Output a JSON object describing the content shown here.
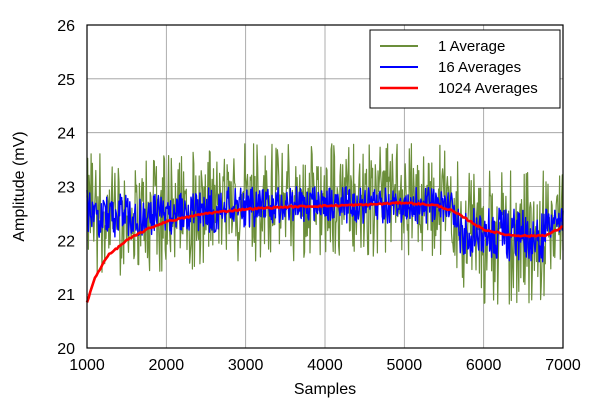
{
  "chart_data": {
    "type": "line",
    "title": "",
    "xlabel": "Samples",
    "ylabel": "Amplitude (mV)",
    "xlim": [
      1000,
      7000
    ],
    "ylim": [
      20,
      26
    ],
    "xticks": [
      1000,
      2000,
      3000,
      4000,
      5000,
      6000,
      7000
    ],
    "yticks": [
      20,
      21,
      22,
      23,
      24,
      25,
      26
    ],
    "grid": true,
    "legend_position": "top-right",
    "series": [
      {
        "name": "1 Average",
        "color": "#6b8e3a",
        "render": "band",
        "x": [
          1000,
          1500,
          2000,
          2500,
          3000,
          3500,
          4000,
          4500,
          5000,
          5500,
          5650,
          5700,
          6000,
          6500,
          6750,
          6800,
          7000
        ],
        "upper": [
          23.7,
          23.5,
          23.6,
          23.7,
          23.8,
          23.8,
          23.8,
          23.8,
          23.8,
          23.8,
          23.7,
          23.3,
          23.3,
          23.3,
          23.3,
          23.2,
          23.3
        ],
        "lower": [
          21.4,
          21.3,
          21.4,
          21.5,
          21.6,
          21.6,
          21.7,
          21.7,
          21.7,
          21.7,
          21.6,
          20.9,
          20.8,
          20.8,
          20.8,
          21.3,
          21.3
        ]
      },
      {
        "name": "16 Averages",
        "color": "#0000ff",
        "render": "band",
        "x": [
          1000,
          1500,
          2000,
          2500,
          3000,
          3500,
          4000,
          4500,
          5000,
          5500,
          5650,
          5700,
          6000,
          6500,
          6750,
          6800,
          7000
        ],
        "upper": [
          23.0,
          22.9,
          22.9,
          23.0,
          23.0,
          23.0,
          23.0,
          23.0,
          23.0,
          23.0,
          22.9,
          22.6,
          22.6,
          22.6,
          22.6,
          22.7,
          22.7
        ],
        "lower": [
          22.0,
          22.0,
          22.1,
          22.1,
          22.2,
          22.3,
          22.3,
          22.3,
          22.3,
          22.3,
          22.2,
          21.7,
          21.6,
          21.6,
          21.6,
          22.0,
          22.0
        ]
      },
      {
        "name": "1024 Averages",
        "color": "#ff0000",
        "render": "line",
        "x": [
          1000,
          1100,
          1250,
          1500,
          1750,
          2000,
          2500,
          3000,
          3500,
          4000,
          4500,
          5000,
          5400,
          5600,
          5800,
          6000,
          6300,
          6600,
          6800,
          7000
        ],
        "values": [
          20.85,
          21.3,
          21.7,
          22.0,
          22.2,
          22.35,
          22.5,
          22.58,
          22.62,
          22.64,
          22.66,
          22.7,
          22.65,
          22.55,
          22.38,
          22.2,
          22.1,
          22.08,
          22.1,
          22.25
        ]
      }
    ]
  }
}
